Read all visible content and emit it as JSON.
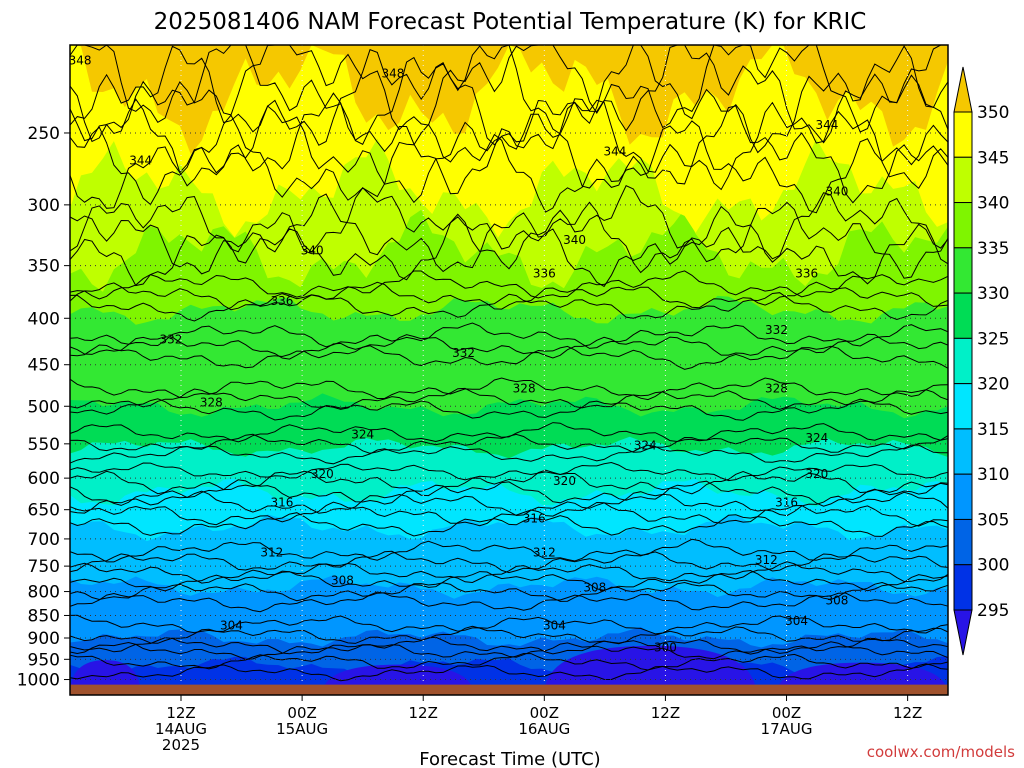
{
  "chart_data": {
    "type": "heatmap",
    "title": "2025081406 NAM Forecast Potential Temperature (K) for KRIC",
    "xlabel": "Forecast Time (UTC)",
    "ylabel": "",
    "units": "K",
    "y_scale": "log-pressure",
    "y_axis_inverted": true,
    "y_ticks": [
      250,
      300,
      350,
      400,
      450,
      500,
      550,
      600,
      650,
      700,
      750,
      800,
      850,
      900,
      950,
      1000
    ],
    "y_range_hpa": [
      1040,
      200
    ],
    "x_range_hours": [
      -5,
      82
    ],
    "x_ticks": [
      {
        "hour": 6,
        "labels": [
          "12Z",
          "14AUG",
          "2025"
        ]
      },
      {
        "hour": 18,
        "labels": [
          "00Z",
          "15AUG"
        ]
      },
      {
        "hour": 30,
        "labels": [
          "12Z"
        ]
      },
      {
        "hour": 42,
        "labels": [
          "00Z",
          "16AUG"
        ]
      },
      {
        "hour": 54,
        "labels": [
          "12Z"
        ]
      },
      {
        "hour": 66,
        "labels": [
          "00Z",
          "17AUG"
        ]
      },
      {
        "hour": 78,
        "labels": [
          "12Z"
        ]
      }
    ],
    "grid": true,
    "colorbar": {
      "ticks": [
        350,
        345,
        340,
        335,
        330,
        325,
        320,
        315,
        310,
        305,
        300,
        295
      ],
      "levels": [
        {
          "min": 350,
          "color": "#f5c800"
        },
        {
          "min": 345,
          "color": "#ffff00"
        },
        {
          "min": 340,
          "color": "#bfff00"
        },
        {
          "min": 335,
          "color": "#7ff500"
        },
        {
          "min": 330,
          "color": "#33e833"
        },
        {
          "min": 325,
          "color": "#00dc55"
        },
        {
          "min": 320,
          "color": "#00f0c8"
        },
        {
          "min": 315,
          "color": "#00e6ff"
        },
        {
          "min": 310,
          "color": "#00beff"
        },
        {
          "min": 305,
          "color": "#0096ff"
        },
        {
          "min": 300,
          "color": "#0064e6"
        },
        {
          "min": 295,
          "color": "#0032e6"
        },
        {
          "min": 0,
          "color": "#2814e6"
        }
      ],
      "legend_placement": "right"
    },
    "isentropes": [
      {
        "theta": 348,
        "p_hpa": 218
      },
      {
        "theta": 344,
        "p_hpa": 258
      },
      {
        "theta": 340,
        "p_hpa": 318
      },
      {
        "theta": 336,
        "p_hpa": 368
      },
      {
        "theta": 332,
        "p_hpa": 418
      },
      {
        "theta": 328,
        "p_hpa": 478
      },
      {
        "theta": 324,
        "p_hpa": 535
      },
      {
        "theta": 320,
        "p_hpa": 590
      },
      {
        "theta": 316,
        "p_hpa": 640
      },
      {
        "theta": 312,
        "p_hpa": 722
      },
      {
        "theta": 308,
        "p_hpa": 778
      },
      {
        "theta": 304,
        "p_hpa": 870
      },
      {
        "theta": 300,
        "p_hpa": 930
      }
    ],
    "contour_labels": [
      {
        "text": "348",
        "hour": -4,
        "p": 208
      },
      {
        "text": "348",
        "hour": 27,
        "p": 215
      },
      {
        "text": "344",
        "hour": 2,
        "p": 268
      },
      {
        "text": "344",
        "hour": 49,
        "p": 262
      },
      {
        "text": "344",
        "hour": 70,
        "p": 245
      },
      {
        "text": "340",
        "hour": 19,
        "p": 337
      },
      {
        "text": "340",
        "hour": 45,
        "p": 328
      },
      {
        "text": "340",
        "hour": 71,
        "p": 290
      },
      {
        "text": "336",
        "hour": 16,
        "p": 383
      },
      {
        "text": "336",
        "hour": 42,
        "p": 357
      },
      {
        "text": "336",
        "hour": 68,
        "p": 357
      },
      {
        "text": "332",
        "hour": 5,
        "p": 422
      },
      {
        "text": "332",
        "hour": 34,
        "p": 437
      },
      {
        "text": "332",
        "hour": 65,
        "p": 412
      },
      {
        "text": "328",
        "hour": 9,
        "p": 495
      },
      {
        "text": "328",
        "hour": 40,
        "p": 478
      },
      {
        "text": "328",
        "hour": 65,
        "p": 478
      },
      {
        "text": "324",
        "hour": 24,
        "p": 537
      },
      {
        "text": "324",
        "hour": 52,
        "p": 552
      },
      {
        "text": "324",
        "hour": 69,
        "p": 542
      },
      {
        "text": "320",
        "hour": 20,
        "p": 594
      },
      {
        "text": "320",
        "hour": 44,
        "p": 604
      },
      {
        "text": "320",
        "hour": 69,
        "p": 594
      },
      {
        "text": "316",
        "hour": 16,
        "p": 638
      },
      {
        "text": "316",
        "hour": 41,
        "p": 665
      },
      {
        "text": "316",
        "hour": 66,
        "p": 638
      },
      {
        "text": "312",
        "hour": 15,
        "p": 725
      },
      {
        "text": "312",
        "hour": 42,
        "p": 725
      },
      {
        "text": "312",
        "hour": 64,
        "p": 738
      },
      {
        "text": "308",
        "hour": 22,
        "p": 778
      },
      {
        "text": "308",
        "hour": 47,
        "p": 792
      },
      {
        "text": "308",
        "hour": 71,
        "p": 818
      },
      {
        "text": "304",
        "hour": 11,
        "p": 872
      },
      {
        "text": "304",
        "hour": 43,
        "p": 872
      },
      {
        "text": "304",
        "hour": 67,
        "p": 862
      },
      {
        "text": "300",
        "hour": 54,
        "p": 922
      }
    ]
  },
  "credit": "coolwx.com/models"
}
